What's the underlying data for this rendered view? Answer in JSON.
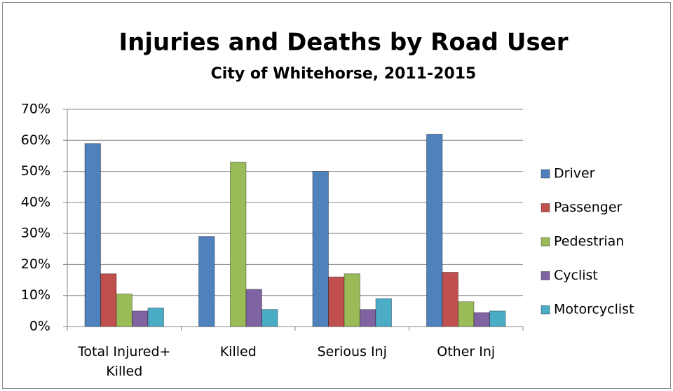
{
  "chart_data": {
    "type": "bar",
    "title": "Injuries and Deaths by Road User",
    "subtitle": "City of Whitehorse, 2011-2015",
    "categories": [
      "Total Injured+ Killed",
      "Killed",
      "Serious Inj",
      "Other Inj"
    ],
    "series": [
      {
        "name": "Driver",
        "color": "#4f81bd",
        "values": [
          59,
          29,
          50,
          62
        ]
      },
      {
        "name": "Passenger",
        "color": "#c0504d",
        "values": [
          17,
          0,
          16,
          17.5
        ]
      },
      {
        "name": "Pedestrian",
        "color": "#9bbb59",
        "values": [
          10.5,
          53,
          17,
          8
        ]
      },
      {
        "name": "Cyclist",
        "color": "#8064a2",
        "values": [
          5,
          12,
          5.5,
          4.5
        ]
      },
      {
        "name": "Motorcyclist",
        "color": "#4bacc6",
        "values": [
          6,
          5.5,
          9,
          5
        ]
      }
    ],
    "ylim": [
      0,
      70
    ],
    "yticks": [
      {
        "value": 0,
        "label": "0%"
      },
      {
        "value": 10,
        "label": "10%"
      },
      {
        "value": 20,
        "label": "20%"
      },
      {
        "value": 30,
        "label": "30%"
      },
      {
        "value": 40,
        "label": "40%"
      },
      {
        "value": 50,
        "label": "50%"
      },
      {
        "value": 60,
        "label": "60%"
      },
      {
        "value": 70,
        "label": "70%"
      }
    ],
    "grid": true,
    "legend": "right"
  }
}
